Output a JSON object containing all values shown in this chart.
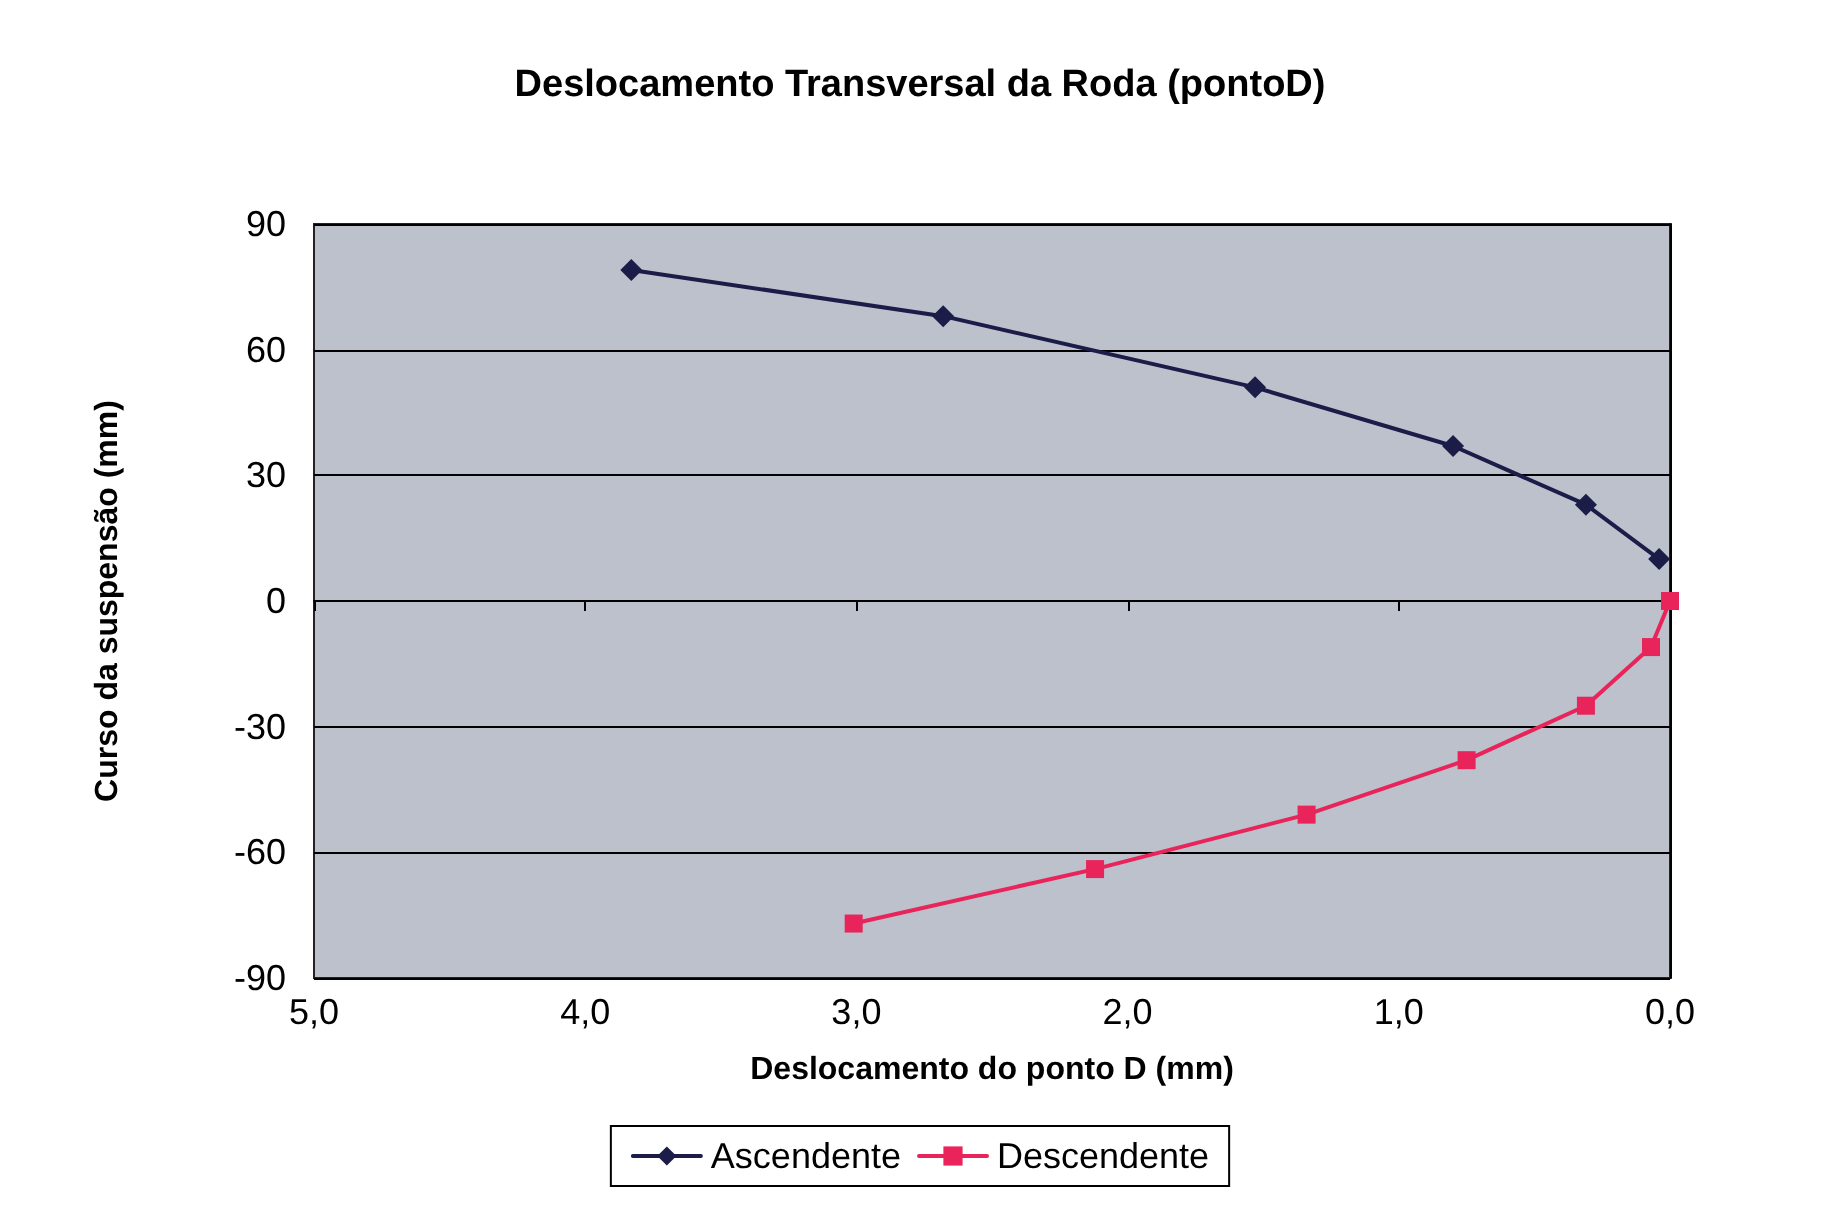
{
  "chart_data": {
    "type": "line",
    "title": "Deslocamento Transversal da Roda (pontoD)",
    "xlabel": "Deslocamento do ponto D (mm)",
    "ylabel": "Curso da suspensão (mm)",
    "series": [
      {
        "name": "Ascendente",
        "color": "#1c1c48",
        "marker": "diamond",
        "x": [
          3.83,
          2.68,
          1.53,
          0.8,
          0.31,
          0.04
        ],
        "values": [
          79,
          68,
          51,
          37,
          23,
          10
        ]
      },
      {
        "name": "Descendente",
        "color": "#e8245a",
        "marker": "square",
        "x": [
          0,
          0.07,
          0.31,
          0.75,
          1.34,
          2.12,
          3.01
        ],
        "values": [
          0,
          -11,
          -25,
          -38,
          -51,
          -64,
          -77
        ]
      }
    ],
    "xlim": [
      5,
      0
    ],
    "xticks": [
      {
        "value": 5,
        "label": "5,0"
      },
      {
        "value": 4,
        "label": "4,0"
      },
      {
        "value": 3,
        "label": "3,0"
      },
      {
        "value": 2,
        "label": "2,0"
      },
      {
        "value": 1,
        "label": "1,0"
      },
      {
        "value": 0,
        "label": "0,0"
      }
    ],
    "ylim": [
      -90,
      90
    ],
    "yticks": [
      -90,
      -60,
      -30,
      0,
      30,
      60,
      90
    ],
    "grid": "y",
    "legend": "bottom"
  }
}
